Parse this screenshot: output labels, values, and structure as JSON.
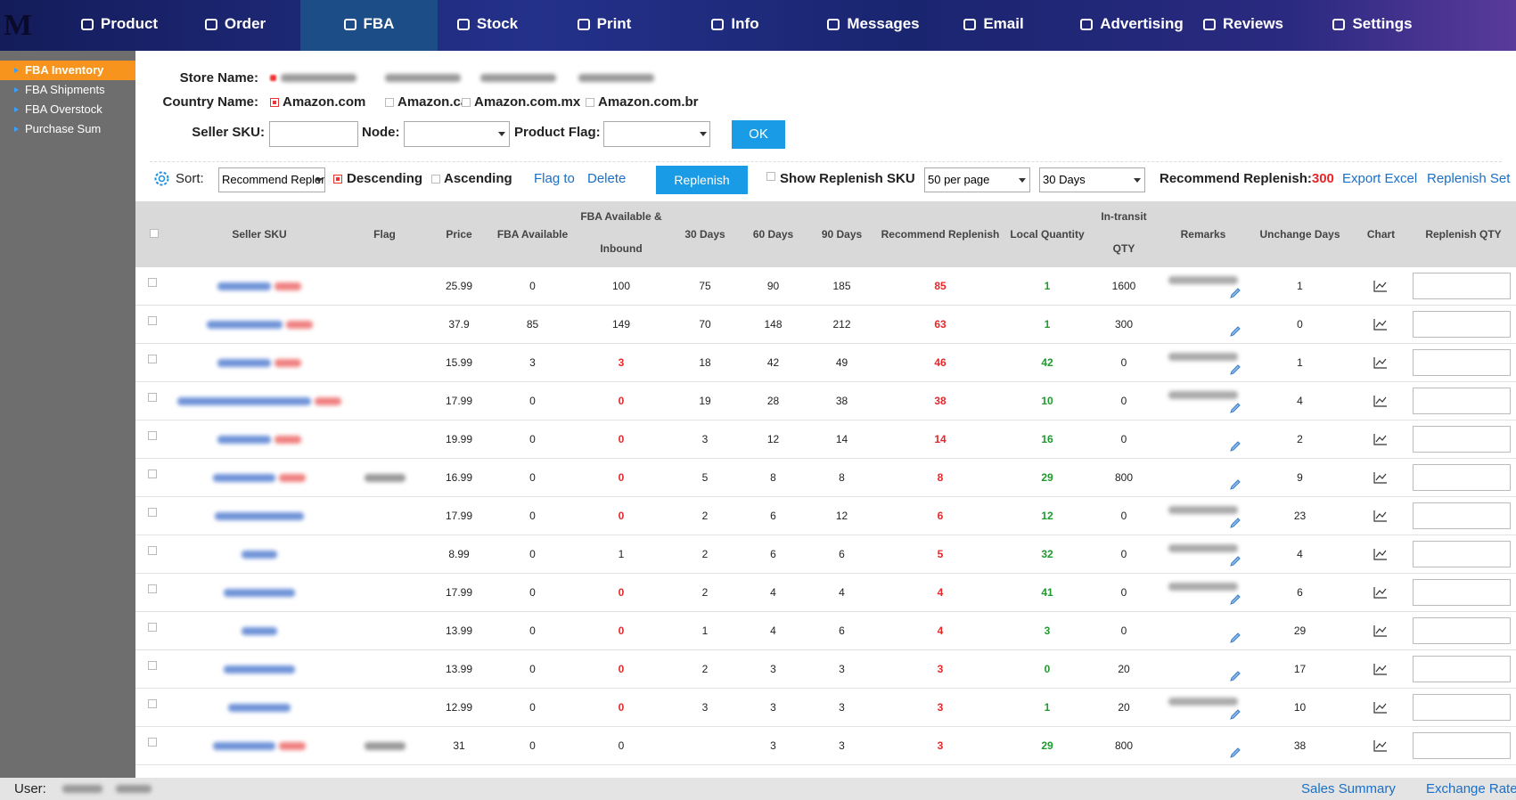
{
  "nav": {
    "items": [
      "Product",
      "Order",
      "FBA",
      "Stock",
      "Print",
      "Info",
      "Messages",
      "Email",
      "Advertising",
      "Reviews",
      "Settings"
    ],
    "active": 2
  },
  "sidebar": {
    "items": [
      "FBA Inventory",
      "FBA Shipments",
      "FBA Overstock",
      "Purchase Sum"
    ],
    "active": 0
  },
  "filters": {
    "store_label": "Store Name:",
    "country_label": "Country Name:",
    "countries": [
      {
        "name": "Amazon.com",
        "checked": true
      },
      {
        "name": "Amazon.ca",
        "checked": false
      },
      {
        "name": "Amazon.com.mx",
        "checked": false
      },
      {
        "name": "Amazon.com.br",
        "checked": false
      }
    ],
    "sku_label": "Seller SKU:",
    "node_label": "Node:",
    "flag_label": "Product Flag:",
    "ok": "OK"
  },
  "toolbar": {
    "sort_label": "Sort:",
    "sort_value": "Recommend Replenish",
    "descending": "Descending",
    "ascending": "Ascending",
    "flag_to": "Flag to",
    "delete": "Delete",
    "replenish": "Replenish",
    "show_replenish": "Show Replenish SKU",
    "per_page": "50 per page",
    "days": "30 Days",
    "recommend_label": "Recommend Replenish:",
    "recommend_total": "300",
    "export": "Export Excel",
    "replenish_set": "Replenish Set"
  },
  "table": {
    "columns": [
      [],
      [
        "Seller SKU"
      ],
      [
        "Flag"
      ],
      [
        "Price"
      ],
      [
        "FBA Available"
      ],
      [
        "FBA Available &",
        "Inbound"
      ],
      [
        "30 Days"
      ],
      [
        "60 Days"
      ],
      [
        "90 Days"
      ],
      [
        "Recommend Replenish"
      ],
      [
        "Local Quantity"
      ],
      [
        "In-transit",
        "QTY"
      ],
      [
        "Remarks"
      ],
      [
        "Unchange Days"
      ],
      [
        "Chart"
      ],
      [
        "Replenish QTY"
      ]
    ],
    "recommend_color": "#e8262a",
    "local_color": "#1f9a2e",
    "alert_color": "#e8262a",
    "rows": [
      {
        "cells": [
          25.99,
          0,
          100,
          75,
          90,
          185,
          85,
          1,
          1600,
          1
        ],
        "inbound_alert": false
      },
      {
        "cells": [
          37.9,
          85,
          149,
          70,
          148,
          212,
          63,
          1,
          300,
          0
        ],
        "inbound_alert": false
      },
      {
        "cells": [
          15.99,
          3,
          3,
          18,
          42,
          49,
          46,
          42,
          0,
          1
        ],
        "inbound_alert": true
      },
      {
        "cells": [
          17.99,
          0,
          0,
          19,
          28,
          38,
          38,
          10,
          0,
          4
        ],
        "inbound_alert": true
      },
      {
        "cells": [
          19.99,
          0,
          0,
          3,
          12,
          14,
          14,
          16,
          0,
          2
        ],
        "inbound_alert": true
      },
      {
        "cells": [
          16.99,
          0,
          0,
          5,
          8,
          8,
          8,
          29,
          800,
          9
        ],
        "inbound_alert": true
      },
      {
        "cells": [
          17.99,
          0,
          0,
          2,
          6,
          12,
          6,
          12,
          0,
          23
        ],
        "inbound_alert": true
      },
      {
        "cells": [
          8.99,
          0,
          1,
          2,
          6,
          6,
          5,
          32,
          0,
          4
        ],
        "inbound_alert": false
      },
      {
        "cells": [
          17.99,
          0,
          0,
          2,
          4,
          4,
          4,
          41,
          0,
          6
        ],
        "inbound_alert": true
      },
      {
        "cells": [
          13.99,
          0,
          0,
          1,
          4,
          6,
          4,
          3,
          0,
          29
        ],
        "inbound_alert": true
      },
      {
        "cells": [
          13.99,
          0,
          0,
          2,
          3,
          3,
          3,
          0,
          20,
          17
        ],
        "inbound_alert": true
      },
      {
        "cells": [
          12.99,
          0,
          0,
          3,
          3,
          3,
          3,
          1,
          20,
          10
        ],
        "inbound_alert": true
      },
      {
        "cells": [
          31,
          0,
          0,
          null,
          3,
          3,
          3,
          29,
          800,
          38
        ],
        "inbound_alert": false
      }
    ]
  },
  "footer": {
    "user_label": "User:",
    "sales_summary": "Sales Summary",
    "exchange_rate": "Exchange Rate"
  }
}
